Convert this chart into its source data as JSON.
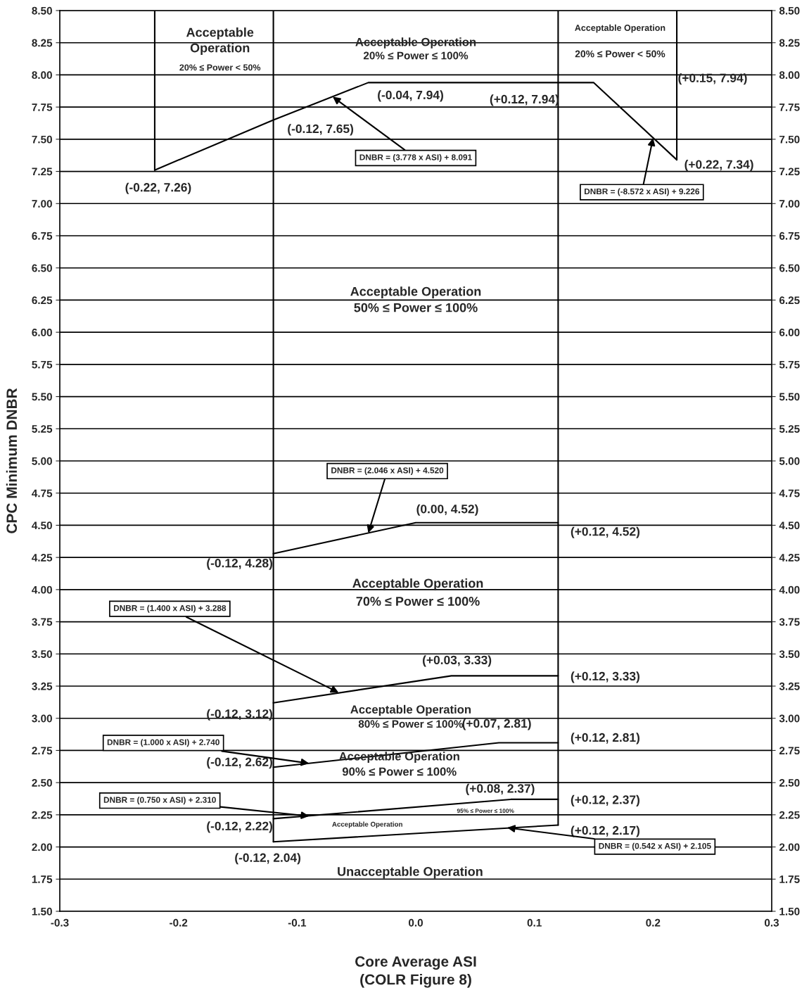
{
  "chart_data": {
    "type": "line",
    "xlabel": "Core Average ASI\n(COLR Figure 8)",
    "ylabel": "CPC Minimum DNBR",
    "xlim": [
      -0.3,
      0.3
    ],
    "xticks": [
      -0.3,
      -0.2,
      -0.1,
      {
        "value": 0.0,
        "label": "0.0"
      },
      0.1,
      0.2,
      0.3
    ],
    "ylim": [
      1.5,
      8.5
    ],
    "yticks": [
      {
        "value": 1.5,
        "label": "1.50"
      },
      {
        "value": 1.75,
        "label": "1.75"
      },
      {
        "value": 2.0,
        "label": "2.00"
      },
      {
        "value": 2.25,
        "label": "2.25"
      },
      {
        "value": 2.5,
        "label": "2.50"
      },
      {
        "value": 2.75,
        "label": "2.75"
      },
      {
        "value": 3.0,
        "label": "3.00"
      },
      {
        "value": 3.25,
        "label": "3.25"
      },
      {
        "value": 3.5,
        "label": "3.50"
      },
      {
        "value": 3.75,
        "label": "3.75"
      },
      {
        "value": 4.0,
        "label": "4.00"
      },
      {
        "value": 4.25,
        "label": "4.25"
      },
      {
        "value": 4.5,
        "label": "4.50"
      },
      {
        "value": 4.75,
        "label": "4.75"
      },
      {
        "value": 5.0,
        "label": "5.00"
      },
      {
        "value": 5.25,
        "label": "5.25"
      },
      {
        "value": 5.5,
        "label": "5.50"
      },
      {
        "value": 5.75,
        "label": "5.75"
      },
      {
        "value": 6.0,
        "label": "6.00"
      },
      {
        "value": 6.25,
        "label": "6.25"
      },
      {
        "value": 6.5,
        "label": "6.50"
      },
      {
        "value": 6.75,
        "label": "6.75"
      },
      {
        "value": 7.0,
        "label": "7.00"
      },
      {
        "value": 7.25,
        "label": "7.25"
      },
      {
        "value": 7.5,
        "label": "7.50"
      },
      {
        "value": 7.75,
        "label": "7.75"
      },
      {
        "value": 8.0,
        "label": "8.00"
      },
      {
        "value": 8.25,
        "label": "8.25"
      },
      {
        "value": 8.5,
        "label": "8.50"
      }
    ],
    "y2lim": [
      1.5,
      8.5
    ],
    "y2ticks": [
      {
        "value": 1.5,
        "label": "1.50"
      },
      {
        "value": 1.75,
        "label": "1.75"
      },
      {
        "value": 2.0,
        "label": "2.00"
      },
      {
        "value": 2.25,
        "label": "2.25"
      },
      {
        "value": 2.5,
        "label": "2.50"
      },
      {
        "value": 2.75,
        "label": "2.75"
      },
      {
        "value": 3.0,
        "label": "3.00"
      },
      {
        "value": 3.25,
        "label": "3.25"
      },
      {
        "value": 3.5,
        "label": "3.50"
      },
      {
        "value": 3.75,
        "label": "3.75"
      },
      {
        "value": 4.0,
        "label": "4.00"
      },
      {
        "value": 4.25,
        "label": "4.25"
      },
      {
        "value": 4.5,
        "label": "4.50"
      },
      {
        "value": 4.75,
        "label": "4.75"
      },
      {
        "value": 5.0,
        "label": "5.00"
      },
      {
        "value": 5.25,
        "label": "5.25"
      },
      {
        "value": 5.5,
        "label": "5.50"
      },
      {
        "value": 5.75,
        "label": "5.75"
      },
      {
        "value": 6.0,
        "label": "6.00"
      },
      {
        "value": 6.25,
        "label": "6.25"
      },
      {
        "value": 6.5,
        "label": "6.50"
      },
      {
        "value": 6.75,
        "label": "6.75"
      },
      {
        "value": 7.0,
        "label": "7.00"
      },
      {
        "value": 7.25,
        "label": "7.25"
      },
      {
        "value": 7.5,
        "label": "7.50"
      },
      {
        "value": 7.75,
        "label": "7.75"
      },
      {
        "value": 8.0,
        "label": "8.00"
      },
      {
        "value": 8.25,
        "label": "8.25"
      },
      {
        "value": 8.5,
        "label": "8.50"
      }
    ],
    "grid": "y",
    "marker": "none",
    "line_style": "solid",
    "series": [
      {
        "color": "#000000",
        "x": [
          -0.22,
          -0.12,
          -0.04,
          0.15,
          0.22
        ],
        "values": [
          7.26,
          7.65,
          7.94,
          7.94,
          7.34
        ]
      },
      {
        "color": "#000000",
        "x": [
          -0.12,
          0.0,
          0.12
        ],
        "values": [
          4.28,
          4.52,
          4.52
        ]
      },
      {
        "color": "#000000",
        "x": [
          -0.12,
          0.03,
          0.12
        ],
        "values": [
          3.12,
          3.33,
          3.33
        ]
      },
      {
        "color": "#000000",
        "x": [
          -0.12,
          0.07,
          0.12
        ],
        "values": [
          2.62,
          2.81,
          2.81
        ]
      },
      {
        "color": "#000000",
        "x": [
          -0.12,
          0.08,
          0.12
        ],
        "values": [
          2.22,
          2.37,
          2.37
        ]
      },
      {
        "color": "#000000",
        "x": [
          -0.12,
          0.12
        ],
        "values": [
          2.04,
          2.17
        ]
      },
      {
        "color": "#000000",
        "x": [
          -0.22,
          -0.22
        ],
        "values": [
          7.26,
          8.5
        ]
      },
      {
        "color": "#000000",
        "x": [
          0.22,
          0.22
        ],
        "values": [
          7.34,
          8.5
        ]
      },
      {
        "color": "#000000",
        "x": [
          -0.12,
          -0.12
        ],
        "values": [
          2.04,
          8.5
        ]
      },
      {
        "color": "#000000",
        "x": [
          0.12,
          0.12
        ],
        "values": [
          2.17,
          8.5
        ]
      }
    ],
    "annotations": [
      {
        "text": "(-0.22, 7.26)",
        "x": -0.22,
        "y": 7.26
      },
      {
        "text": "(-0.12, 7.65)",
        "x": -0.12,
        "y": 7.65
      },
      {
        "text": "(-0.04, 7.94)",
        "x": -0.04,
        "y": 7.94
      },
      {
        "text": "(+0.12, 7.94)",
        "x": 0.12,
        "y": 7.94
      },
      "(+0.15, 7.94)",
      {
        "text": "(+0.22, 7.34)",
        "x": 0.22,
        "y": 7.34
      },
      {
        "text": "(0.00, 4.52)",
        "x": 0.0,
        "y": 4.52
      },
      {
        "text": "(+0.12, 4.52)",
        "x": 0.12,
        "y": 4.52
      },
      {
        "text": "(-0.12, 4.28)",
        "x": -0.12,
        "y": 4.28
      },
      {
        "text": "(+0.03, 3.33)",
        "x": 0.03,
        "y": 3.33
      },
      {
        "text": "(+0.12, 3.33)",
        "x": 0.12,
        "y": 3.33
      },
      {
        "text": "(-0.12, 3.12)",
        "x": -0.12,
        "y": 3.12
      },
      {
        "text": "(+0.07, 2.81)",
        "x": 0.07,
        "y": 2.81
      },
      {
        "text": "(+0.12, 2.81)",
        "x": 0.12,
        "y": 2.81
      },
      {
        "text": "(-0.12, 2.62)",
        "x": -0.12,
        "y": 2.62
      },
      {
        "text": "(+0.08, 2.37)",
        "x": 0.08,
        "y": 2.37
      },
      {
        "text": "(+0.12, 2.37)",
        "x": 0.12,
        "y": 2.37
      },
      {
        "text": "(-0.12, 2.22)",
        "x": -0.12,
        "y": 2.22
      },
      {
        "text": "(+0.12, 2.17)",
        "x": 0.12,
        "y": 2.17
      },
      {
        "text": "(-0.12, 2.04)",
        "x": -0.12,
        "y": 2.04
      },
      {
        "text": "DNBR = (3.778 x ASI) + 8.091",
        "x": -0.07,
        "y": 7.83
      },
      {
        "text": "DNBR = (-8.572 x ASI) + 9.226",
        "x": 0.2,
        "y": 7.51
      },
      {
        "text": "DNBR = (2.046 x ASI) + 4.520",
        "x": -0.04,
        "y": 4.44
      },
      {
        "text": "DNBR = (1.400 x ASI) + 3.288",
        "x": -0.065,
        "y": 3.2
      },
      {
        "text": "DNBR = (1.000 x ASI) + 2.740",
        "x": -0.09,
        "y": 2.65
      },
      {
        "text": "DNBR = (0.750 x ASI) + 2.310",
        "x": -0.09,
        "y": 2.24
      },
      {
        "text": "DNBR = (0.542 x ASI) + 2.105",
        "x": 0.077,
        "y": 2.15
      },
      "Acceptable\nOperation",
      "20% ≤ Power < 50%",
      "Acceptable Operation",
      "20% ≤ Power ≤ 100%",
      "Acceptable Operation",
      "20% ≤ Power < 50%",
      "Acceptable Operation",
      "50% ≤ Power ≤ 100%",
      "Acceptable Operation",
      "70% ≤ Power ≤ 100%",
      "Acceptable Operation",
      "80% ≤ Power ≤ 100%",
      "Acceptable Operation",
      "90% ≤ Power ≤ 100%",
      "95% ≤ Power ≤ 100%",
      "Acceptable Operation",
      "Unacceptable Operation"
    ]
  }
}
